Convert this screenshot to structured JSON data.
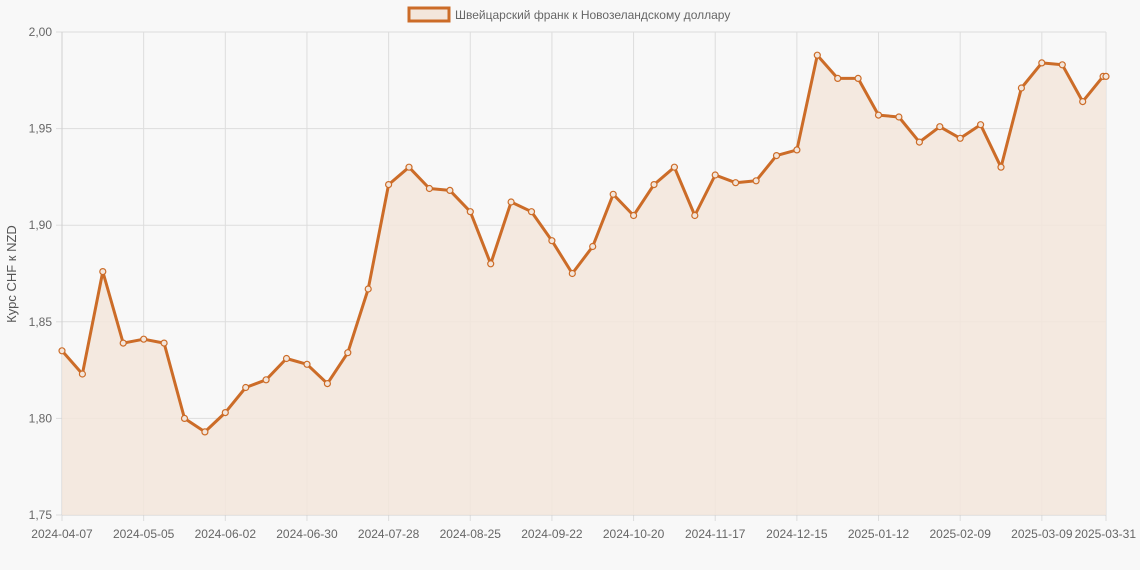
{
  "chart_data": {
    "type": "line",
    "title": "",
    "xlabel": "",
    "ylabel": "Курс CHF к NZD",
    "ylim": [
      1.75,
      2.0
    ],
    "yticks": [
      "1,75",
      "1,80",
      "1,85",
      "1,90",
      "1,95",
      "2,00"
    ],
    "ytick_values": [
      1.75,
      1.8,
      1.85,
      1.9,
      1.95,
      2.0
    ],
    "xlim": [
      "2024-04-07",
      "2025-03-31"
    ],
    "xticks": [
      "2024-04-07",
      "2024-05-05",
      "2024-06-02",
      "2024-06-30",
      "2024-07-28",
      "2024-08-25",
      "2024-09-22",
      "2024-10-20",
      "2024-11-17",
      "2024-12-15",
      "2025-01-12",
      "2025-02-09",
      "2025-03-09",
      "2025-03-31"
    ],
    "grid": true,
    "legend_position": "top-center",
    "colors": {
      "line": "#cc6c28",
      "fill": "#f3e6dc",
      "grid": "#dddddd"
    },
    "series": [
      {
        "name": "Швейцарский франк к Новозеландскому доллару",
        "x": [
          "2024-04-07",
          "2024-04-14",
          "2024-04-21",
          "2024-04-28",
          "2024-05-05",
          "2024-05-12",
          "2024-05-19",
          "2024-05-26",
          "2024-06-02",
          "2024-06-09",
          "2024-06-16",
          "2024-06-23",
          "2024-06-30",
          "2024-07-07",
          "2024-07-14",
          "2024-07-21",
          "2024-07-28",
          "2024-08-04",
          "2024-08-11",
          "2024-08-18",
          "2024-08-25",
          "2024-09-01",
          "2024-09-08",
          "2024-09-15",
          "2024-09-22",
          "2024-09-29",
          "2024-10-06",
          "2024-10-13",
          "2024-10-20",
          "2024-10-27",
          "2024-11-03",
          "2024-11-10",
          "2024-11-17",
          "2024-11-24",
          "2024-12-01",
          "2024-12-08",
          "2024-12-15",
          "2024-12-22",
          "2024-12-29",
          "2025-01-05",
          "2025-01-12",
          "2025-01-19",
          "2025-01-26",
          "2025-02-02",
          "2025-02-09",
          "2025-02-16",
          "2025-02-23",
          "2025-03-02",
          "2025-03-09",
          "2025-03-16",
          "2025-03-23",
          "2025-03-30",
          "2025-03-31"
        ],
        "values": [
          1.835,
          1.823,
          1.876,
          1.839,
          1.841,
          1.839,
          1.8,
          1.793,
          1.803,
          1.816,
          1.82,
          1.831,
          1.828,
          1.818,
          1.834,
          1.867,
          1.921,
          1.93,
          1.919,
          1.918,
          1.907,
          1.88,
          1.912,
          1.907,
          1.892,
          1.875,
          1.889,
          1.916,
          1.905,
          1.921,
          1.93,
          1.905,
          1.926,
          1.922,
          1.923,
          1.936,
          1.939,
          1.988,
          1.976,
          1.976,
          1.957,
          1.956,
          1.943,
          1.951,
          1.945,
          1.952,
          1.93,
          1.971,
          1.984,
          1.983,
          1.964,
          1.977,
          1.977
        ]
      }
    ]
  }
}
